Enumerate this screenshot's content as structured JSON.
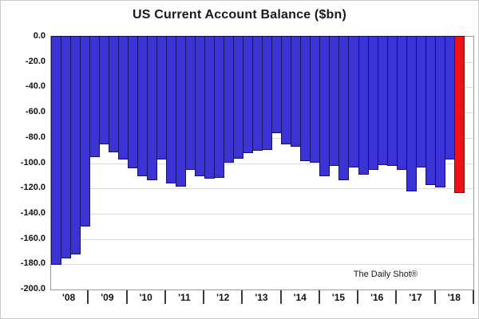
{
  "title": "US Current Account Balance ($bn)",
  "watermark": "The Daily Shot®",
  "colors": {
    "bar_blue": "#3b33d6",
    "bar_blue_border": "#141168",
    "bar_red": "#ec1318",
    "bar_red_border": "#5c0d10",
    "gridline": "#dcdcdc",
    "plot_border": "#9a9a9a",
    "text": "#1a1a1a"
  },
  "y_axis": {
    "min": -200,
    "max": 0,
    "tick_step": 20,
    "tick_labels": [
      "0.0",
      "-20.0",
      "-40.0",
      "-60.0",
      "-80.0",
      "-100.0",
      "-120.0",
      "-140.0",
      "-160.0",
      "-180.0",
      "-200.0"
    ]
  },
  "x_axis": {
    "year_labels": [
      "'08",
      "'09",
      "'10",
      "'11",
      "'12",
      "'13",
      "'14",
      "'15",
      "'16",
      "'17",
      "'18"
    ],
    "slots_per_year": 4,
    "total_slots": 44
  },
  "chart_data": {
    "type": "bar",
    "title": "US Current Account Balance ($bn)",
    "xlabel": "",
    "ylabel": "",
    "ylim": [
      -200,
      0
    ],
    "grid": true,
    "legend": "none",
    "x": [
      "2008Q1",
      "2008Q2",
      "2008Q3",
      "2008Q4",
      "2009Q1",
      "2009Q2",
      "2009Q3",
      "2009Q4",
      "2010Q1",
      "2010Q2",
      "2010Q3",
      "2010Q4",
      "2011Q1",
      "2011Q2",
      "2011Q3",
      "2011Q4",
      "2012Q1",
      "2012Q2",
      "2012Q3",
      "2012Q4",
      "2013Q1",
      "2013Q2",
      "2013Q3",
      "2013Q4",
      "2014Q1",
      "2014Q2",
      "2014Q3",
      "2014Q4",
      "2015Q1",
      "2015Q2",
      "2015Q3",
      "2015Q4",
      "2016Q1",
      "2016Q2",
      "2016Q3",
      "2016Q4",
      "2017Q1",
      "2017Q2",
      "2017Q3",
      "2017Q4",
      "2018Q1",
      "2018Q2",
      "2018Q3"
    ],
    "values": [
      -181,
      -176,
      -173,
      -151,
      -96,
      -86,
      -92,
      -98,
      -105,
      -111,
      -114,
      -98,
      -117,
      -119,
      -106,
      -111,
      -113,
      -112,
      -100,
      -97,
      -93,
      -91,
      -90,
      -77,
      -86,
      -88,
      -99,
      -100,
      -111,
      -103,
      -114,
      -104,
      -110,
      -106,
      -102,
      -103,
      -106,
      -123,
      -104,
      -118,
      -120,
      -98,
      -124
    ],
    "highlight": {
      "index": 42,
      "color": "#ec1318",
      "meaning": "latest quarter highlighted red"
    }
  }
}
